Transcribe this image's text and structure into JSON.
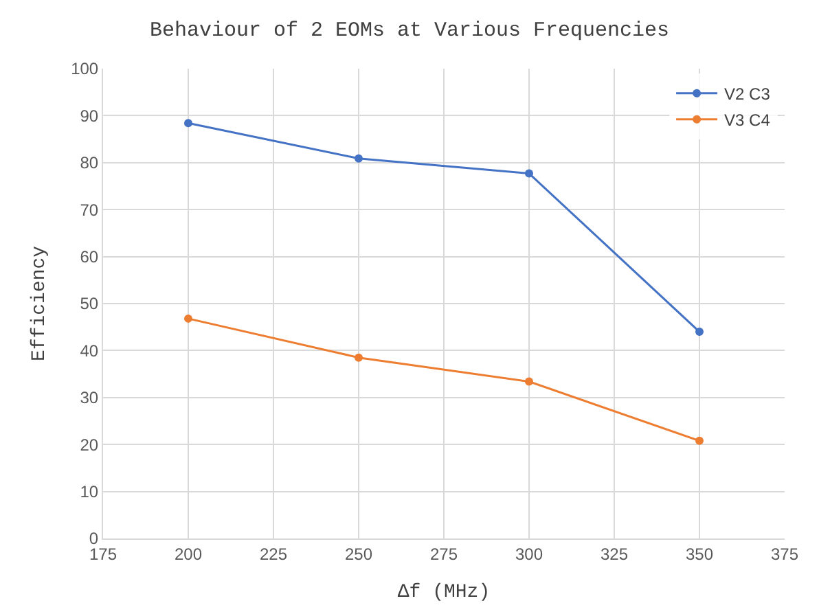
{
  "chart_data": {
    "type": "line",
    "title": "Behaviour of 2 EOMs at Various Frequencies",
    "xlabel": "Δf (MHz)",
    "ylabel": "Efficiency",
    "x": [
      200,
      250,
      300,
      350
    ],
    "series": [
      {
        "name": "V2 C3",
        "color": "#4472c4",
        "values": [
          88.4,
          80.9,
          77.7,
          44.0
        ]
      },
      {
        "name": "V3 C4",
        "color": "#ed7d31",
        "values": [
          46.8,
          38.5,
          33.4,
          20.8
        ]
      }
    ],
    "xlim": [
      175,
      375
    ],
    "xticks": [
      175,
      200,
      225,
      250,
      275,
      300,
      325,
      350,
      375
    ],
    "ylim": [
      0,
      100
    ],
    "yticks": [
      0,
      10,
      20,
      30,
      40,
      50,
      60,
      70,
      80,
      90,
      100
    ],
    "grid": true,
    "legend": "top right",
    "marker": "circle",
    "line_style": "solid"
  }
}
